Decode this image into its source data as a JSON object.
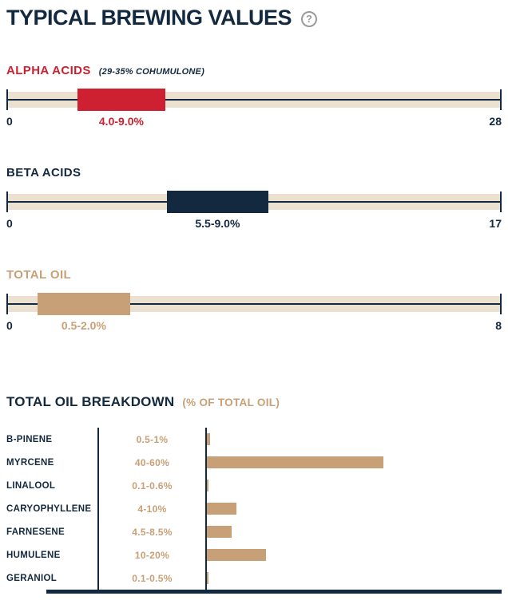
{
  "colors": {
    "navy": "#13293f",
    "red": "#cd2031",
    "tan": "#c8a077",
    "track": "#ece0d0",
    "gray": "#9a9a9a",
    "bg": "#ffffff"
  },
  "header": {
    "title": "TYPICAL BREWING VALUES",
    "help_glyph": "?"
  },
  "chart_data": [
    {
      "type": "bar",
      "subtype": "range-indicator",
      "label": "ALPHA ACIDS",
      "sublabel": "(29-35% COHUMULONE)",
      "x_range": [
        0,
        28
      ],
      "range": [
        4.0,
        9.0
      ],
      "range_label": "4.0-9.0%",
      "axis_min_label": "0",
      "axis_max_label": "28",
      "color": "#cd2031"
    },
    {
      "type": "bar",
      "subtype": "range-indicator",
      "label": "BETA ACIDS",
      "sublabel": "",
      "x_range": [
        0,
        17
      ],
      "range": [
        5.5,
        9.0
      ],
      "range_label": "5.5-9.0%",
      "axis_min_label": "0",
      "axis_max_label": "17",
      "color": "#13293f"
    },
    {
      "type": "bar",
      "subtype": "range-indicator",
      "label": "TOTAL OIL",
      "sublabel": "",
      "x_range": [
        0,
        8
      ],
      "range": [
        0.5,
        2.0
      ],
      "range_label": "0.5-2.0%",
      "axis_min_label": "0",
      "axis_max_label": "8",
      "color": "#c8a077"
    },
    {
      "type": "bar",
      "orientation": "horizontal",
      "title": "TOTAL OIL BREAKDOWN",
      "subtitle": "(% OF TOTAL OIL)",
      "categories": [
        "B-PINENE",
        "MYRCENE",
        "LINALOOL",
        "CARYOPHYLLENE",
        "FARNESENE",
        "HUMULENE",
        "GERANIOL"
      ],
      "range_labels": [
        "0.5-1%",
        "40-60%",
        "0.1-0.6%",
        "4-10%",
        "4.5-8.5%",
        "10-20%",
        "0.1-0.5%"
      ],
      "values": [
        1,
        60,
        0.6,
        10,
        8.5,
        20,
        0.5
      ],
      "xlim": [
        0,
        100
      ],
      "bar_color": "#c8a077",
      "legend": "off",
      "grid": "off"
    }
  ]
}
